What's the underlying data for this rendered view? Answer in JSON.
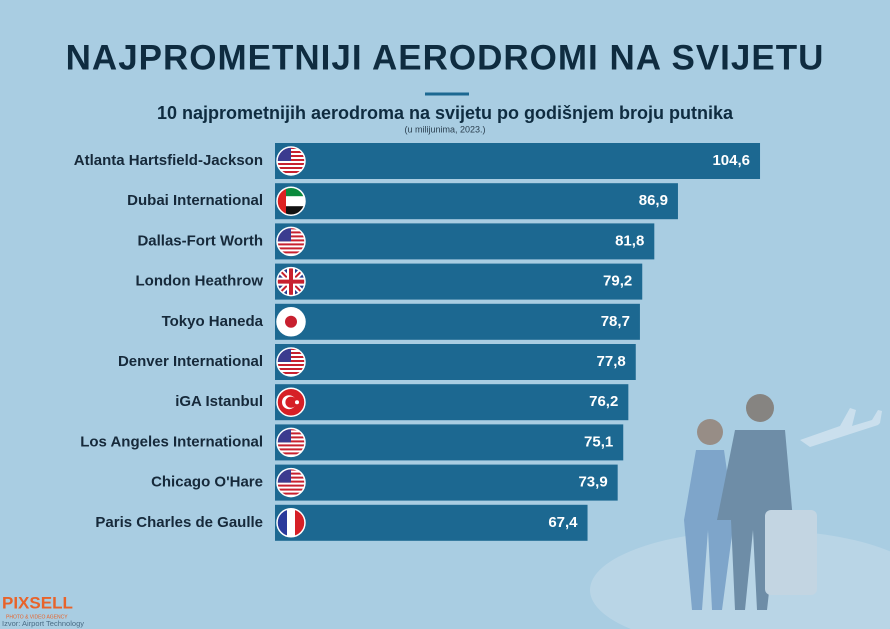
{
  "chart_data": {
    "type": "bar",
    "orientation": "horizontal",
    "title": "NAJPROMETNIJI AERODROMI NA SVIJETU",
    "subtitle": "10 najprometnijih aerodroma na svijetu po godišnjem broju putnika",
    "note": "(u milijunima, 2023.)",
    "categories": [
      "Atlanta Hartsfield-Jackson",
      "Dubai International",
      "Dallas-Fort Worth",
      "London Heathrow",
      "Tokyo Haneda",
      "Denver International",
      "iGA Istanbul",
      "Los Angeles International",
      "Chicago O'Hare",
      "Paris Charles de Gaulle"
    ],
    "values": [
      104.6,
      86.9,
      81.8,
      79.2,
      78.7,
      77.8,
      76.2,
      75.1,
      73.9,
      67.4
    ],
    "value_labels": [
      "104,6",
      "86,9",
      "81,8",
      "79,2",
      "78,7",
      "77,8",
      "76,2",
      "75,1",
      "73,9",
      "67,4"
    ],
    "color": "#1c6891"
  },
  "logo": {
    "name": "PIXSELL",
    "tagline": "PHOTO & VIDEO AGENCY"
  },
  "source": "Izvor: Airport Technology"
}
